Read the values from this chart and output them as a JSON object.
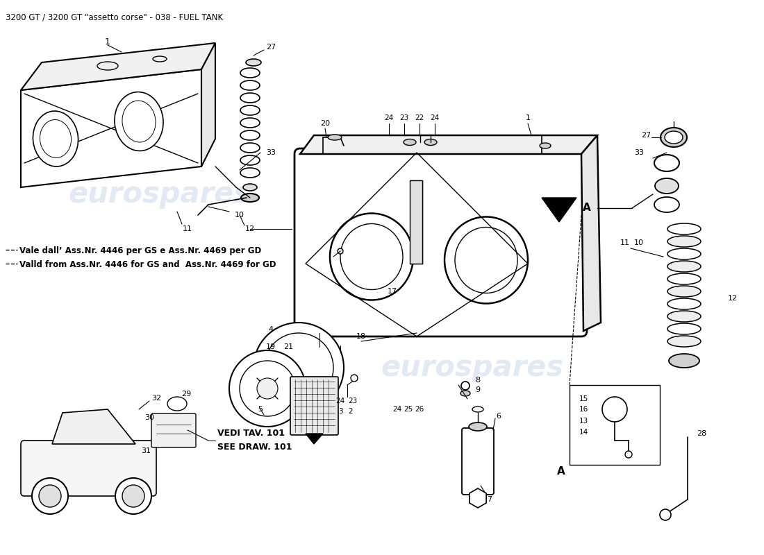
{
  "title": "3200 GT / 3200 GT \"assetto corse\" - 038 - FUEL TANK",
  "title_fontsize": 8.5,
  "bg_color": "#ffffff",
  "watermark_color": "#c8d4e8",
  "watermark_text": "eurospares",
  "note_line1": "Vale dall’ Ass.Nr. 4446 per GS e Ass.Nr. 4469 per GD",
  "note_line2": "Valld from Ass.Nr. 4446 for GS and  Ass.Nr. 4469 for GD",
  "vedi_line1": "VEDI TAV. 101",
  "vedi_line2": "SEE DRAW. 101",
  "fig_w": 11.0,
  "fig_h": 8.0,
  "dpi": 100
}
